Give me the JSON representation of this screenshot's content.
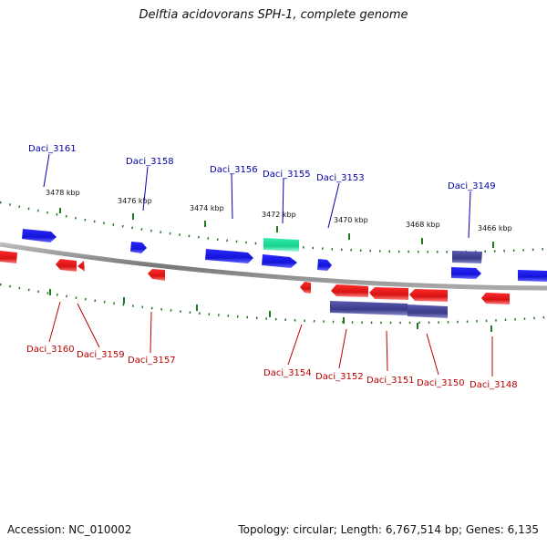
{
  "title": "Delftia acidovorans SPH-1, complete genome",
  "footer": {
    "accession": "Accession: NC_010002",
    "summary": "Topology: circular; Length: 6,767,514 bp; Genes: 6,135"
  },
  "scale": {
    "ticks": [
      "3478 kbp",
      "3476 kbp",
      "3474 kbp",
      "3472 kbp",
      "3470 kbp",
      "3468 kbp",
      "3466 kbp"
    ]
  },
  "genes": {
    "forward": [
      "Daci_3161",
      "Daci_3158",
      "Daci_3156",
      "Daci_3155",
      "Daci_3153",
      "Daci_3149"
    ],
    "reverse": [
      "Daci_3160",
      "Daci_3159",
      "Daci_3157",
      "Daci_3154",
      "Daci_3152",
      "Daci_3151",
      "Daci_3150",
      "Daci_3148"
    ]
  },
  "colors": {
    "forward_gene": "#1a1aee",
    "reverse_gene": "#ee1111",
    "rna_gene": "#22dd99",
    "other_feature": "#4a4a9a",
    "forward_label": "#0000aa",
    "reverse_label": "#bb0000",
    "tick": "#227722",
    "backbone": "#888888"
  }
}
